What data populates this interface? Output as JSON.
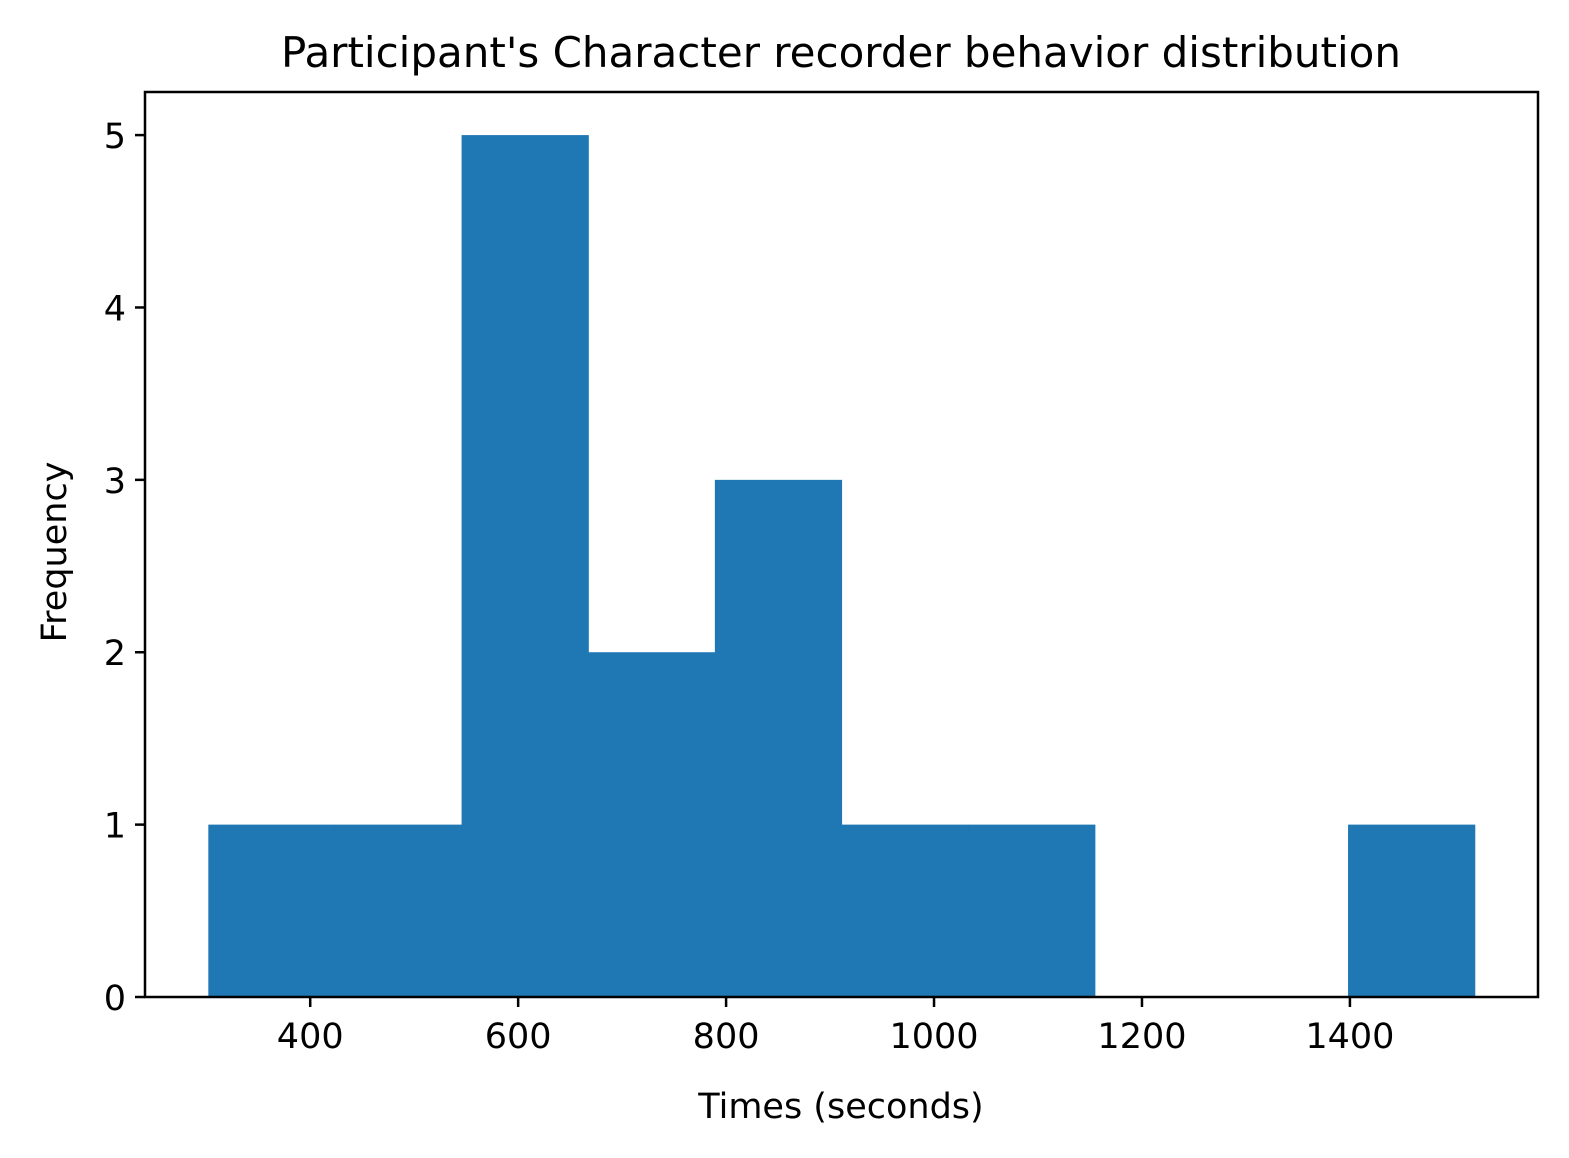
{
  "chart_data": {
    "type": "bar",
    "subtype": "histogram",
    "title": "Participant's Character recorder behavior distribution",
    "xlabel": "Times (seconds)",
    "ylabel": "Frequency",
    "bin_edges": [
      302,
      423.8,
      545.6,
      667.4,
      789.2,
      911,
      1032.8,
      1154.6,
      1276.4,
      1398.2,
      1520
    ],
    "values": [
      1,
      1,
      5,
      2,
      3,
      1,
      1,
      0,
      0,
      1
    ],
    "xlim": [
      241.1,
      1580.9
    ],
    "ylim": [
      0,
      5.25
    ],
    "xticks": [
      400,
      600,
      800,
      1000,
      1200,
      1400
    ],
    "yticks": [
      0,
      1,
      2,
      3,
      4,
      5
    ],
    "bar_color": "#1f77b4",
    "grid": false,
    "legend": "none"
  }
}
